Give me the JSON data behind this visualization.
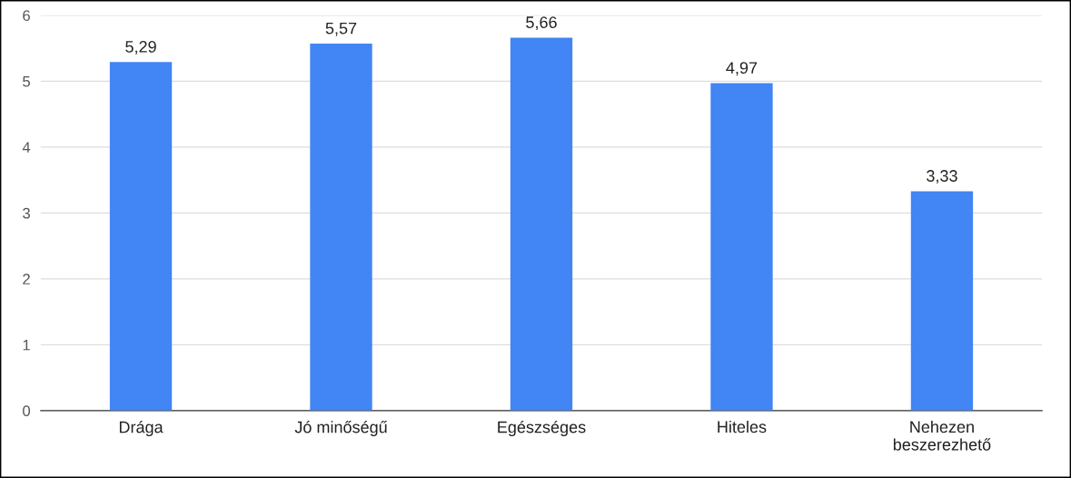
{
  "chart_data": {
    "type": "bar",
    "categories": [
      "Drága",
      "Jó minőségű",
      "Egészséges",
      "Hiteles",
      "Nehezen\nbeszerezhető"
    ],
    "values": [
      5.29,
      5.57,
      5.66,
      4.97,
      3.33
    ],
    "value_labels": [
      "5,29",
      "5,57",
      "5,66",
      "4,97",
      "3,33"
    ],
    "color": "#4285f4",
    "ylim": [
      0,
      6
    ],
    "yticks": [
      0,
      1,
      2,
      3,
      4,
      5,
      6
    ],
    "grid": "y",
    "legend": false
  }
}
